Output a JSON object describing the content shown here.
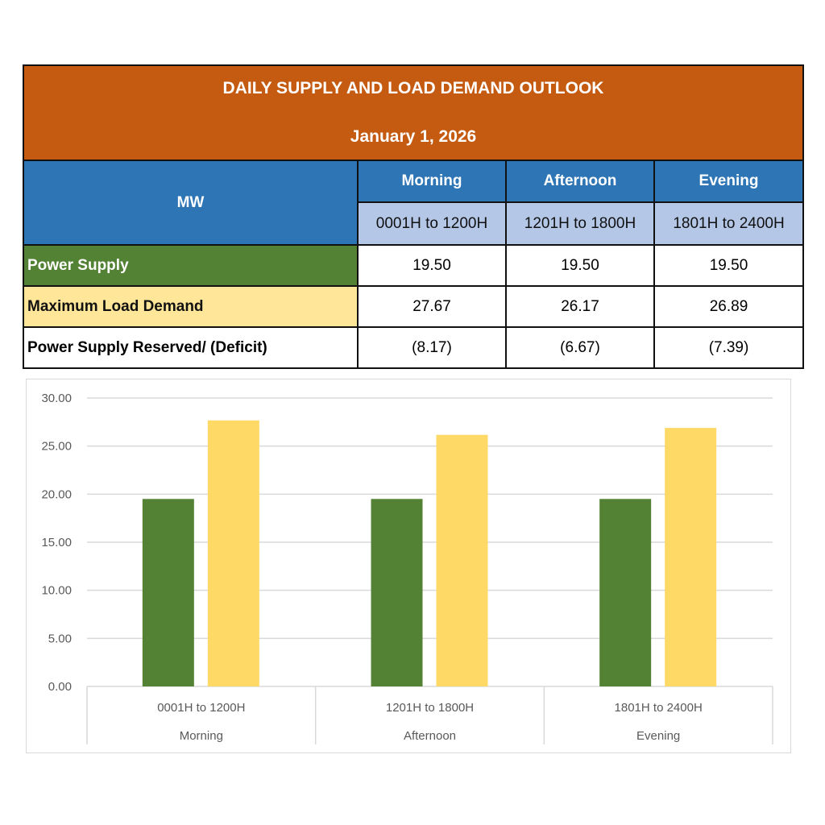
{
  "table": {
    "title": "DAILY SUPPLY AND LOAD DEMAND OUTLOOK",
    "date": "January 1, 2026",
    "unit": "MW",
    "periods": [
      {
        "name": "Morning",
        "range": "0001H to 1200H"
      },
      {
        "name": "Afternoon",
        "range": "1201H to 1800H"
      },
      {
        "name": "Evening",
        "range": "1801H to 2400H"
      }
    ],
    "rows": [
      {
        "label": "Power Supply",
        "values": [
          "19.50",
          "19.50",
          "19.50"
        ]
      },
      {
        "label": "Maximum Load Demand",
        "values": [
          "27.67",
          "26.17",
          "26.89"
        ]
      },
      {
        "label": "Power Supply Reserved/ (Deficit)",
        "values": [
          "(8.17)",
          "(6.67)",
          "(7.39)"
        ]
      }
    ]
  },
  "chart_data": {
    "type": "bar",
    "categories": [
      [
        "0001H to 1200H",
        "Morning"
      ],
      [
        "1201H to 1800H",
        "Afternoon"
      ],
      [
        "1801H to 2400H",
        "Evening"
      ]
    ],
    "series": [
      {
        "values": [
          19.5,
          19.5,
          19.5
        ],
        "color": "#548235"
      },
      {
        "values": [
          27.67,
          26.17,
          26.89
        ],
        "color": "#ffd966"
      }
    ],
    "ylim": [
      0,
      30
    ],
    "yticks": [
      "0.00",
      "5.00",
      "10.00",
      "15.00",
      "20.00",
      "25.00",
      "30.00"
    ],
    "grid": true,
    "legend": "none"
  }
}
